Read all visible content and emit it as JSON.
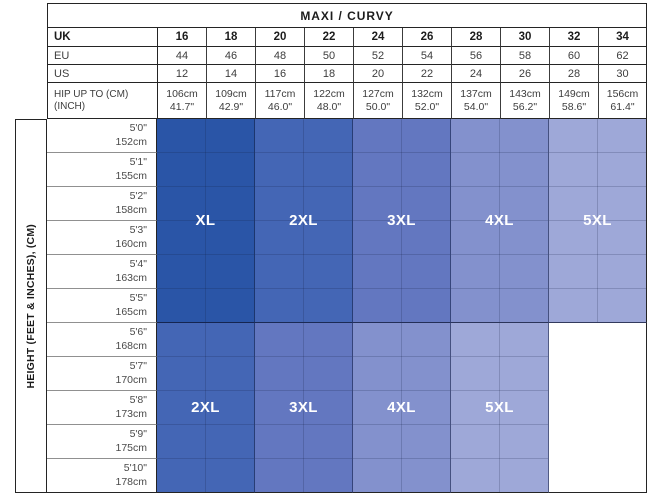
{
  "title": "MAXI / CURVY",
  "header": {
    "uk": {
      "label": "UK",
      "values": [
        "16",
        "18",
        "20",
        "22",
        "24",
        "26",
        "28",
        "30",
        "32",
        "34"
      ]
    },
    "eu": {
      "label": "EU",
      "values": [
        "44",
        "46",
        "48",
        "50",
        "52",
        "54",
        "56",
        "58",
        "60",
        "62"
      ]
    },
    "us": {
      "label": "US",
      "values": [
        "12",
        "14",
        "16",
        "18",
        "20",
        "22",
        "24",
        "26",
        "28",
        "30"
      ]
    },
    "hip": {
      "label_line1": "HIP UP TO (CM)",
      "label_line2": "(INCH)",
      "values": [
        {
          "cm": "106cm",
          "inch": "41.7\""
        },
        {
          "cm": "109cm",
          "inch": "42.9\""
        },
        {
          "cm": "117cm",
          "inch": "46.0\""
        },
        {
          "cm": "122cm",
          "inch": "48.0\""
        },
        {
          "cm": "127cm",
          "inch": "50.0\""
        },
        {
          "cm": "132cm",
          "inch": "52.0\""
        },
        {
          "cm": "137cm",
          "inch": "54.0\""
        },
        {
          "cm": "143cm",
          "inch": "56.2\""
        },
        {
          "cm": "149cm",
          "inch": "58.6\""
        },
        {
          "cm": "156cm",
          "inch": "61.4\""
        }
      ]
    }
  },
  "left_axis_label": "HEIGHT (FEET & INCHES), (CM)",
  "heights": [
    {
      "ft": "5'0\"",
      "cm": "152cm"
    },
    {
      "ft": "5'1\"",
      "cm": "155cm"
    },
    {
      "ft": "5'2\"",
      "cm": "158cm"
    },
    {
      "ft": "5'3\"",
      "cm": "160cm"
    },
    {
      "ft": "5'4\"",
      "cm": "163cm"
    },
    {
      "ft": "5'5\"",
      "cm": "165cm"
    },
    {
      "ft": "5'6\"",
      "cm": "168cm"
    },
    {
      "ft": "5'7\"",
      "cm": "170cm"
    },
    {
      "ft": "5'8\"",
      "cm": "173cm"
    },
    {
      "ft": "5'9\"",
      "cm": "175cm"
    },
    {
      "ft": "5'10\"",
      "cm": "178cm"
    }
  ],
  "grid": {
    "upper_blocks": [
      {
        "label": "XL",
        "color": "#2a55a7",
        "uk_columns": "16-18"
      },
      {
        "label": "2XL",
        "color": "#4466b5",
        "uk_columns": "20-22"
      },
      {
        "label": "3XL",
        "color": "#6377c0",
        "uk_columns": "24-26"
      },
      {
        "label": "4XL",
        "color": "#8391cd",
        "uk_columns": "28-30"
      },
      {
        "label": "5XL",
        "color": "#9ea8d8",
        "uk_columns": "32-34"
      }
    ],
    "lower_blocks": [
      {
        "label": "2XL",
        "color": "#4466b5",
        "uk_columns": "16-18"
      },
      {
        "label": "3XL",
        "color": "#6377c0",
        "uk_columns": "20-22"
      },
      {
        "label": "4XL",
        "color": "#8391cd",
        "uk_columns": "24-26"
      },
      {
        "label": "5XL",
        "color": "#9ea8d8",
        "uk_columns": "28-30"
      },
      {
        "label": "",
        "color": "#ffffff",
        "uk_columns": "32-34"
      }
    ]
  },
  "chart_data": {
    "type": "table",
    "title": "MAXI / CURVY",
    "columns": {
      "uk": [
        "16",
        "18",
        "20",
        "22",
        "24",
        "26",
        "28",
        "30",
        "32",
        "34"
      ],
      "eu": [
        "44",
        "46",
        "48",
        "50",
        "52",
        "54",
        "56",
        "58",
        "60",
        "62"
      ],
      "us": [
        "12",
        "14",
        "16",
        "18",
        "20",
        "22",
        "24",
        "26",
        "28",
        "30"
      ],
      "hip_up_to": [
        "106cm 41.7\"",
        "109cm 42.9\"",
        "117cm 46.0\"",
        "122cm 48.0\"",
        "127cm 50.0\"",
        "132cm 52.0\"",
        "137cm 54.0\"",
        "143cm 56.2\"",
        "149cm 58.6\"",
        "156cm 61.4\""
      ]
    },
    "row_groups": [
      {
        "height_range": "5'0\"-5'5\" (152-165cm)",
        "sizes_by_uk": {
          "16-18": "XL",
          "20-22": "2XL",
          "24-26": "3XL",
          "28-30": "4XL",
          "32-34": "5XL"
        }
      },
      {
        "height_range": "5'6\"-5'10\" (168-178cm)",
        "sizes_by_uk": {
          "16-18": "2XL",
          "20-22": "3XL",
          "24-26": "4XL",
          "28-30": "5XL",
          "32-34": ""
        }
      }
    ],
    "legend_position": "none",
    "color_scale": [
      "#2a55a7",
      "#4466b5",
      "#6377c0",
      "#8391cd",
      "#9ea8d8"
    ]
  }
}
